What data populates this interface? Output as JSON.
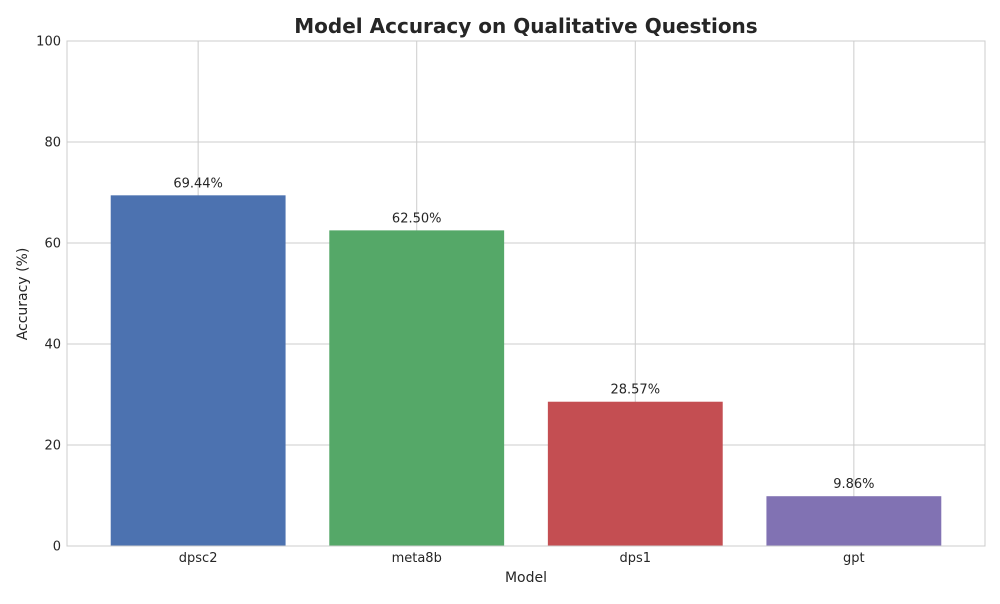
{
  "chart_data": {
    "type": "bar",
    "title": "Model Accuracy on Qualitative Questions",
    "xlabel": "Model",
    "ylabel": "Accuracy (%)",
    "categories": [
      "dpsc2",
      "meta8b",
      "dps1",
      "gpt"
    ],
    "values": [
      69.44,
      62.5,
      28.57,
      9.86
    ],
    "value_labels": [
      "69.44%",
      "62.50%",
      "28.57%",
      "9.86%"
    ],
    "colors": [
      "#4c72b0",
      "#55a868",
      "#c44e52",
      "#8172b3"
    ],
    "ylim": [
      0,
      100
    ],
    "yticks": [
      0,
      20,
      40,
      60,
      80,
      100
    ],
    "grid": true,
    "legend": "none"
  }
}
